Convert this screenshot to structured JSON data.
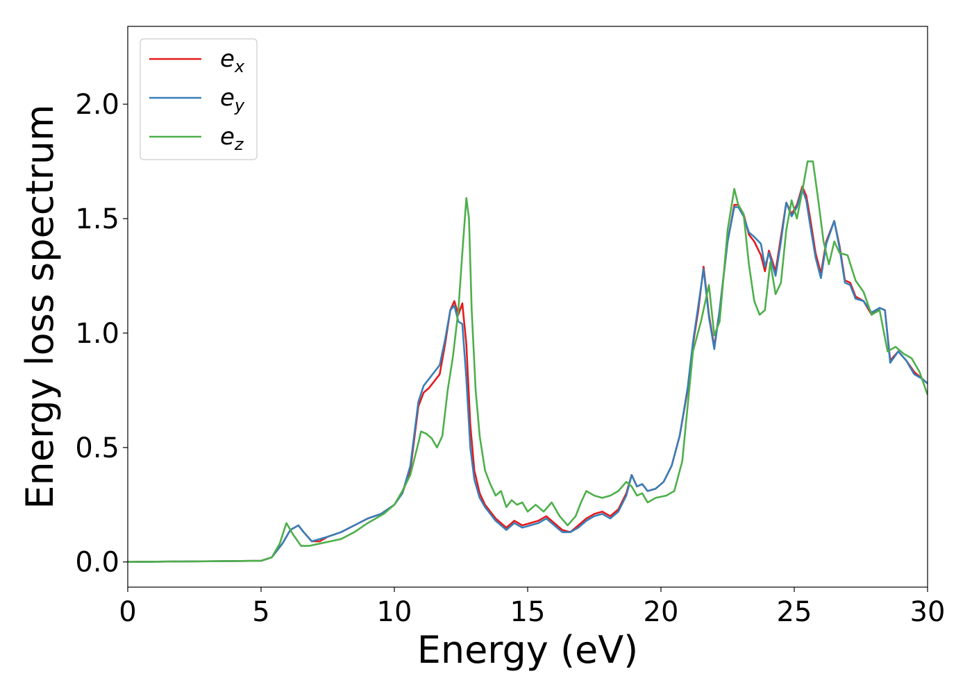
{
  "chart_data": {
    "type": "line",
    "xlabel": "Energy (eV)",
    "ylabel": "Energy loss spectrum",
    "xlim": [
      0,
      30
    ],
    "ylim": [
      -0.11,
      2.34
    ],
    "xticks": [
      "0",
      "5",
      "10",
      "15",
      "20",
      "25",
      "30"
    ],
    "yticks": [
      "0.0",
      "0.5",
      "1.0",
      "1.5",
      "2.0"
    ],
    "grid": false,
    "legend_position": "upper-left",
    "series": [
      {
        "name": "e_x",
        "legend_base": "e",
        "legend_sub": "x",
        "color": "#e41a1c",
        "x": [
          0,
          5,
          5.4,
          5.8,
          6.1,
          6.4,
          6.6,
          6.9,
          7.2,
          7.5,
          8.0,
          8.5,
          9.0,
          9.5,
          10.0,
          10.3,
          10.6,
          10.9,
          11.1,
          11.3,
          11.5,
          11.7,
          11.9,
          12.1,
          12.25,
          12.4,
          12.55,
          12.7,
          12.85,
          13.0,
          13.2,
          13.4,
          13.6,
          13.8,
          14.0,
          14.2,
          14.5,
          14.8,
          15.1,
          15.4,
          15.7,
          16.0,
          16.3,
          16.6,
          16.9,
          17.2,
          17.5,
          17.8,
          18.1,
          18.4,
          18.7,
          18.9,
          19.1,
          19.3,
          19.5,
          19.8,
          20.1,
          20.4,
          20.7,
          21.0,
          21.2,
          21.4,
          21.6,
          21.8,
          22.0,
          22.2,
          22.5,
          22.75,
          22.9,
          23.1,
          23.3,
          23.5,
          23.75,
          23.9,
          24.05,
          24.3,
          24.5,
          24.7,
          24.9,
          25.1,
          25.3,
          25.45,
          25.6,
          25.8,
          26.0,
          26.2,
          26.5,
          26.7,
          26.9,
          27.1,
          27.3,
          27.6,
          27.9,
          28.2,
          28.4,
          28.6,
          28.9,
          29.2,
          29.5,
          29.8,
          30.0
        ],
        "y": [
          0.0,
          0.005,
          0.02,
          0.08,
          0.14,
          0.16,
          0.13,
          0.09,
          0.09,
          0.11,
          0.13,
          0.16,
          0.19,
          0.21,
          0.25,
          0.3,
          0.4,
          0.68,
          0.74,
          0.76,
          0.79,
          0.82,
          0.95,
          1.1,
          1.14,
          1.08,
          1.13,
          0.95,
          0.6,
          0.4,
          0.3,
          0.25,
          0.22,
          0.19,
          0.17,
          0.15,
          0.18,
          0.16,
          0.17,
          0.18,
          0.2,
          0.17,
          0.14,
          0.13,
          0.16,
          0.19,
          0.21,
          0.22,
          0.2,
          0.23,
          0.3,
          0.38,
          0.33,
          0.34,
          0.31,
          0.32,
          0.35,
          0.42,
          0.55,
          0.75,
          0.95,
          1.1,
          1.29,
          1.08,
          0.94,
          1.1,
          1.4,
          1.56,
          1.56,
          1.52,
          1.43,
          1.4,
          1.34,
          1.27,
          1.36,
          1.27,
          1.42,
          1.57,
          1.52,
          1.56,
          1.64,
          1.6,
          1.5,
          1.35,
          1.26,
          1.4,
          1.49,
          1.38,
          1.23,
          1.22,
          1.16,
          1.14,
          1.08,
          1.11,
          1.1,
          0.88,
          0.92,
          0.88,
          0.83,
          0.8,
          0.78
        ]
      },
      {
        "name": "e_y",
        "legend_base": "e",
        "legend_sub": "y",
        "color": "#377eb8",
        "x": [
          0,
          5,
          5.4,
          5.8,
          6.1,
          6.4,
          6.6,
          6.9,
          7.2,
          7.5,
          8.0,
          8.5,
          9.0,
          9.5,
          10.0,
          10.3,
          10.6,
          10.9,
          11.1,
          11.3,
          11.5,
          11.7,
          11.9,
          12.1,
          12.25,
          12.4,
          12.55,
          12.7,
          12.85,
          13.0,
          13.2,
          13.4,
          13.6,
          13.8,
          14.0,
          14.2,
          14.5,
          14.8,
          15.1,
          15.4,
          15.7,
          16.0,
          16.3,
          16.6,
          16.9,
          17.2,
          17.5,
          17.8,
          18.1,
          18.4,
          18.7,
          18.9,
          19.1,
          19.3,
          19.5,
          19.8,
          20.1,
          20.4,
          20.7,
          21.0,
          21.2,
          21.4,
          21.6,
          21.8,
          22.0,
          22.2,
          22.5,
          22.75,
          22.9,
          23.1,
          23.3,
          23.5,
          23.75,
          23.9,
          24.05,
          24.3,
          24.5,
          24.7,
          24.9,
          25.1,
          25.3,
          25.45,
          25.6,
          25.8,
          26.0,
          26.2,
          26.5,
          26.7,
          26.9,
          27.1,
          27.3,
          27.6,
          27.9,
          28.2,
          28.4,
          28.6,
          28.9,
          29.2,
          29.5,
          29.8,
          30.0
        ],
        "y": [
          0.0,
          0.005,
          0.02,
          0.08,
          0.14,
          0.16,
          0.13,
          0.09,
          0.1,
          0.11,
          0.13,
          0.16,
          0.19,
          0.21,
          0.25,
          0.3,
          0.42,
          0.7,
          0.77,
          0.8,
          0.83,
          0.86,
          0.97,
          1.1,
          1.12,
          1.05,
          1.04,
          0.8,
          0.5,
          0.36,
          0.28,
          0.24,
          0.21,
          0.18,
          0.16,
          0.14,
          0.17,
          0.15,
          0.16,
          0.17,
          0.19,
          0.16,
          0.13,
          0.13,
          0.15,
          0.18,
          0.2,
          0.21,
          0.19,
          0.22,
          0.29,
          0.38,
          0.33,
          0.34,
          0.31,
          0.32,
          0.35,
          0.42,
          0.55,
          0.76,
          0.96,
          1.12,
          1.28,
          1.07,
          0.93,
          1.1,
          1.4,
          1.55,
          1.55,
          1.51,
          1.44,
          1.42,
          1.39,
          1.29,
          1.35,
          1.25,
          1.4,
          1.57,
          1.51,
          1.55,
          1.63,
          1.58,
          1.47,
          1.33,
          1.24,
          1.39,
          1.49,
          1.37,
          1.22,
          1.21,
          1.15,
          1.14,
          1.09,
          1.11,
          1.1,
          0.87,
          0.92,
          0.88,
          0.82,
          0.8,
          0.78
        ]
      },
      {
        "name": "e_z",
        "legend_base": "e",
        "legend_sub": "z",
        "color": "#4daf4a",
        "x": [
          0,
          5,
          5.4,
          5.7,
          5.95,
          6.2,
          6.5,
          6.8,
          7.2,
          7.6,
          8.0,
          8.5,
          9.0,
          9.3,
          9.6,
          10.0,
          10.3,
          10.6,
          10.9,
          11.0,
          11.2,
          11.4,
          11.6,
          11.8,
          12.0,
          12.2,
          12.4,
          12.55,
          12.7,
          12.8,
          12.9,
          13.05,
          13.2,
          13.4,
          13.6,
          13.8,
          14.0,
          14.2,
          14.4,
          14.6,
          14.8,
          15.0,
          15.3,
          15.6,
          15.9,
          16.2,
          16.5,
          16.8,
          17.0,
          17.2,
          17.5,
          17.8,
          18.1,
          18.4,
          18.7,
          18.9,
          19.1,
          19.3,
          19.5,
          19.8,
          20.2,
          20.5,
          20.8,
          21.0,
          21.2,
          21.5,
          21.8,
          22.0,
          22.2,
          22.5,
          22.75,
          22.9,
          23.1,
          23.3,
          23.5,
          23.7,
          23.9,
          24.1,
          24.3,
          24.5,
          24.7,
          24.9,
          25.1,
          25.3,
          25.5,
          25.7,
          25.9,
          26.1,
          26.3,
          26.5,
          26.7,
          27.0,
          27.3,
          27.6,
          27.9,
          28.2,
          28.5,
          28.8,
          29.1,
          29.4,
          29.7,
          30.0
        ],
        "y": [
          0.0,
          0.005,
          0.02,
          0.08,
          0.17,
          0.12,
          0.07,
          0.07,
          0.08,
          0.09,
          0.1,
          0.13,
          0.17,
          0.19,
          0.21,
          0.25,
          0.31,
          0.38,
          0.52,
          0.57,
          0.56,
          0.54,
          0.5,
          0.55,
          0.75,
          0.9,
          1.1,
          1.35,
          1.59,
          1.5,
          1.1,
          0.75,
          0.55,
          0.4,
          0.34,
          0.29,
          0.31,
          0.24,
          0.27,
          0.25,
          0.26,
          0.22,
          0.25,
          0.22,
          0.26,
          0.2,
          0.16,
          0.2,
          0.26,
          0.31,
          0.29,
          0.28,
          0.29,
          0.31,
          0.35,
          0.33,
          0.29,
          0.3,
          0.26,
          0.28,
          0.29,
          0.31,
          0.44,
          0.68,
          0.92,
          1.05,
          1.21,
          0.99,
          1.05,
          1.45,
          1.63,
          1.56,
          1.52,
          1.3,
          1.14,
          1.08,
          1.1,
          1.31,
          1.17,
          1.22,
          1.45,
          1.58,
          1.5,
          1.62,
          1.75,
          1.75,
          1.58,
          1.4,
          1.3,
          1.4,
          1.35,
          1.34,
          1.23,
          1.18,
          1.08,
          1.1,
          0.92,
          0.94,
          0.91,
          0.89,
          0.83,
          0.73
        ]
      }
    ]
  }
}
